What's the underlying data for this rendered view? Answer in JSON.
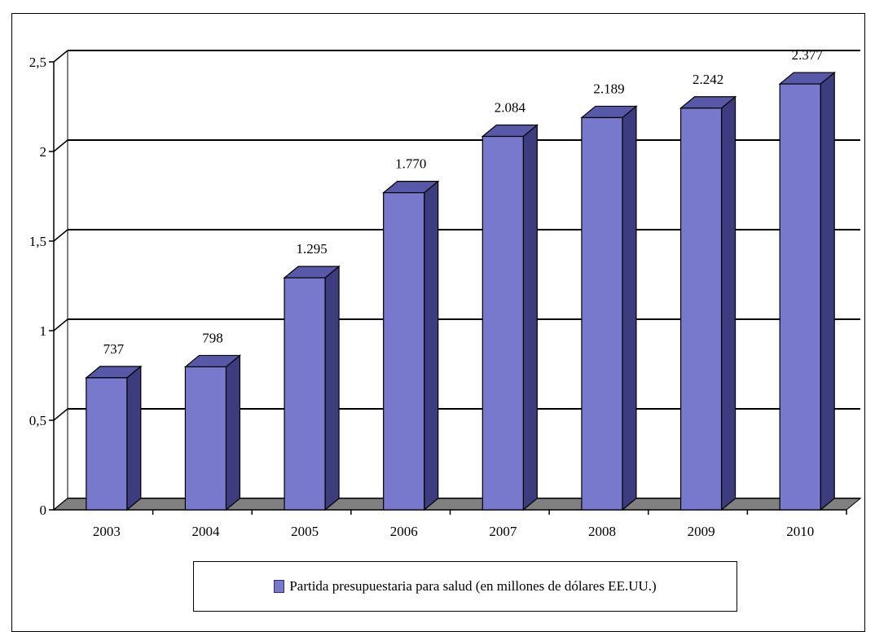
{
  "chart_data": {
    "type": "bar",
    "categories": [
      "2003",
      "2004",
      "2005",
      "2006",
      "2007",
      "2008",
      "2009",
      "2010"
    ],
    "series": [
      {
        "name": "Partida presupuestaria para salud (en millones de dólares EE.UU.)",
        "values": [
          0.737,
          0.798,
          1.295,
          1.77,
          2.084,
          2.189,
          2.242,
          2.377
        ],
        "labels": [
          "737",
          "798",
          "1.295",
          "1.770",
          "2.084",
          "2.189",
          "2.242",
          "2.377"
        ]
      }
    ],
    "yticks": [
      {
        "value": 0,
        "label": "0"
      },
      {
        "value": 0.5,
        "label": "0,5"
      },
      {
        "value": 1,
        "label": "1"
      },
      {
        "value": 1.5,
        "label": "1,5"
      },
      {
        "value": 2,
        "label": "2"
      },
      {
        "value": 2.5,
        "label": "2,5"
      }
    ],
    "ylim": [
      0,
      2.5
    ],
    "grid": true,
    "legend_position": "bottom",
    "colors": {
      "bar_front": "#7878cc",
      "bar_side": "#3c3c7e",
      "bar_top": "#5858a8",
      "bar_outline": "#000000",
      "floor": "#808080"
    }
  }
}
